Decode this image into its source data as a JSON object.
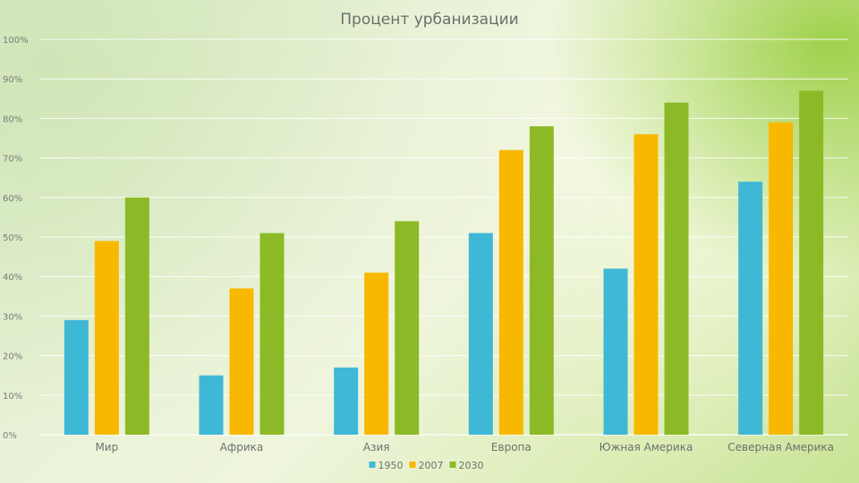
{
  "chart_data": {
    "type": "bar",
    "title": "Процент урбанизации",
    "xlabel": "",
    "ylabel": "",
    "ylim": [
      0,
      100
    ],
    "y_ticks": [
      "0%",
      "10%",
      "20%",
      "30%",
      "40%",
      "50%",
      "60%",
      "70%",
      "80%",
      "90%",
      "100%"
    ],
    "categories": [
      "Мир",
      "Африка",
      "Азия",
      "Европа",
      "Южная Америка",
      "Северная Америка"
    ],
    "series": [
      {
        "name": "1950",
        "color": "#3fb8d6",
        "values": [
          29,
          15,
          17,
          51,
          42,
          64
        ]
      },
      {
        "name": "2007",
        "color": "#f9b800",
        "values": [
          49,
          37,
          41,
          72,
          76,
          79
        ]
      },
      {
        "name": "2030",
        "color": "#8cba26",
        "values": [
          60,
          51,
          54,
          78,
          84,
          87
        ]
      }
    ],
    "grid": true,
    "legend_position": "bottom"
  }
}
